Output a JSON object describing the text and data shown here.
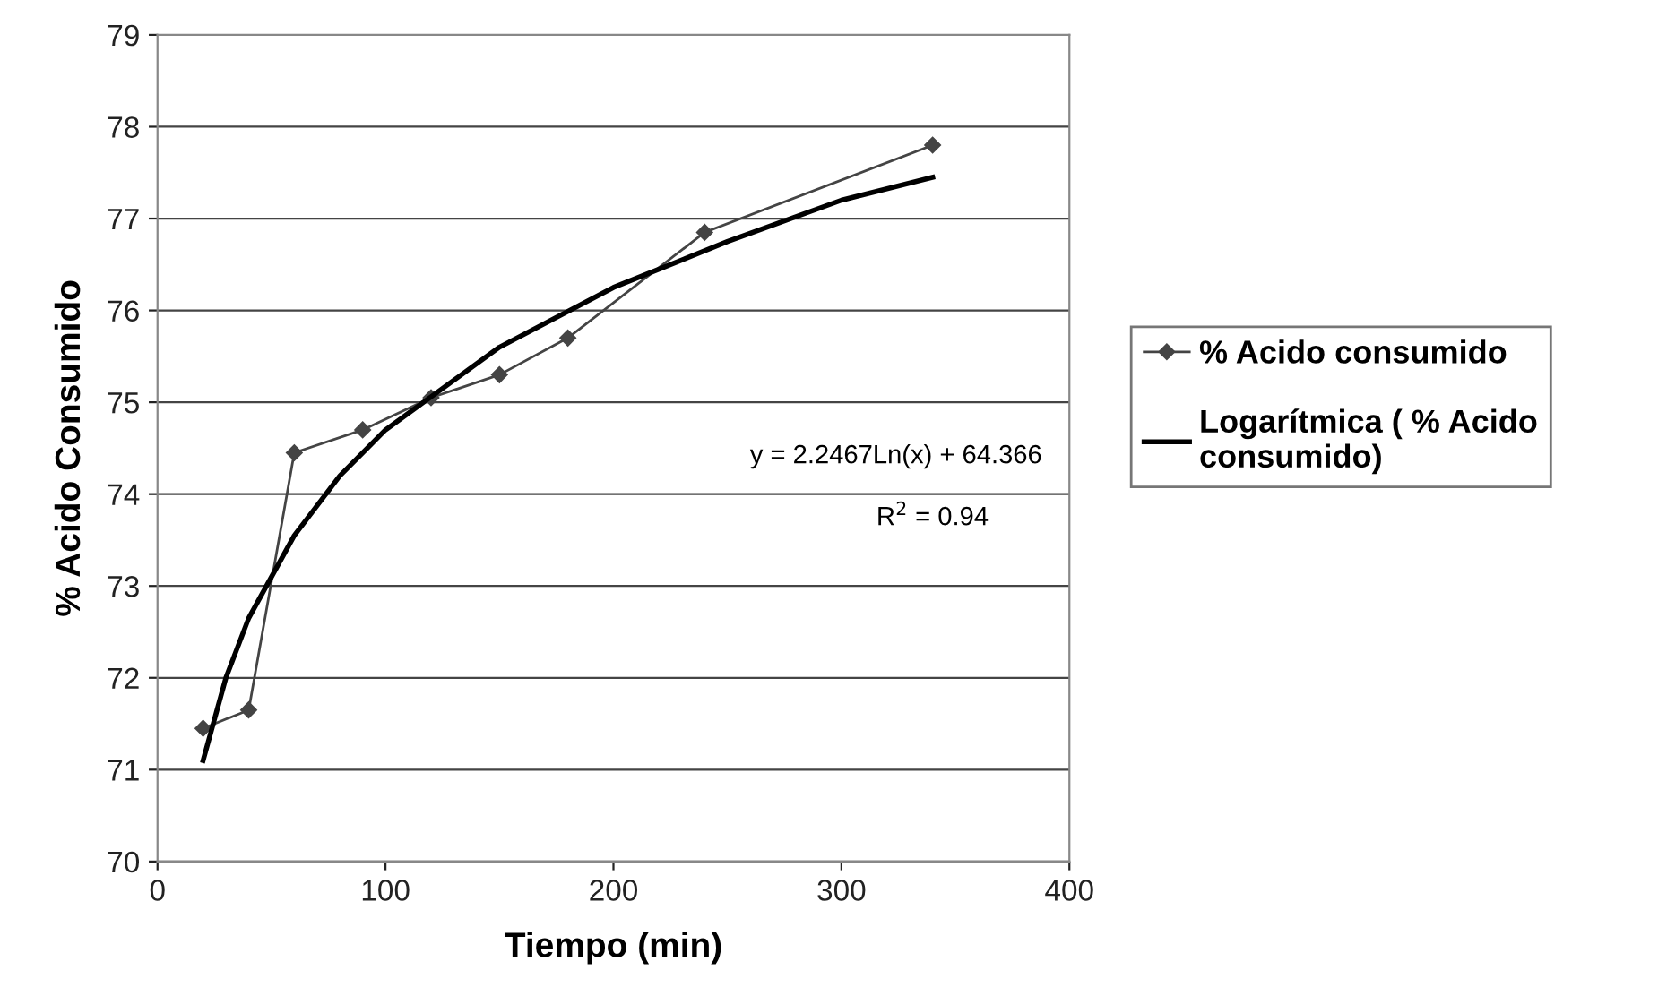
{
  "chart_data": {
    "type": "line",
    "xlabel": "Tiempo (min)",
    "ylabel": "% Acido Consumido",
    "xlim": [
      0,
      400
    ],
    "xticks": [
      0,
      100,
      200,
      300,
      400
    ],
    "ylim": [
      70,
      79
    ],
    "yticks": [
      70,
      71,
      72,
      73,
      74,
      75,
      76,
      77,
      78,
      79
    ],
    "grid": "y",
    "legend": "right",
    "annotations": [
      "y = 2.2467Ln(x) + 64.366",
      "R$^{2}$ = 0.94"
    ],
    "series": [
      {
        "name": "% Acido consumido",
        "color": "#444444",
        "marker": "diamond",
        "line_style": "solid",
        "x": [
          20,
          40,
          60,
          90,
          120,
          150,
          180,
          240,
          340
        ],
        "values": [
          71.45,
          71.65,
          74.45,
          74.7,
          75.05,
          75.3,
          75.7,
          76.85,
          77.8
        ]
      },
      {
        "name": "Logarítmica ( % Acido consumido)",
        "color": "#000000",
        "marker": "none",
        "line_style": "solid",
        "x": [
          20,
          30,
          40,
          60,
          80,
          100,
          150,
          200,
          250,
          300,
          340
        ],
        "values": [
          71.1,
          72.0,
          72.65,
          73.55,
          74.2,
          74.7,
          75.6,
          76.25,
          76.75,
          77.2,
          77.45
        ]
      }
    ]
  }
}
